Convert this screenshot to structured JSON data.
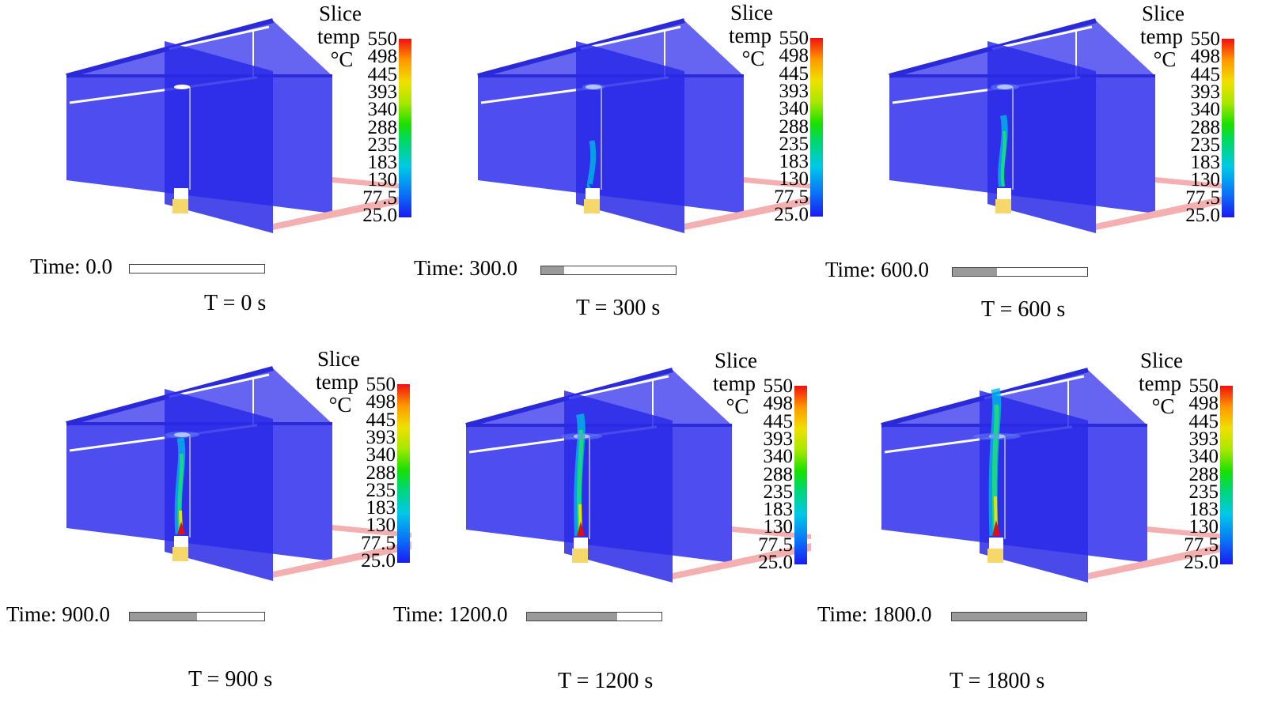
{
  "legend": {
    "title_line1": "Slice",
    "title_line2": "temp",
    "unit": "°C",
    "ticks": [
      "550",
      "498",
      "445",
      "393",
      "340",
      "288",
      "235",
      "183",
      "130",
      "77.5",
      "25.0"
    ],
    "colors": {
      "cold": "#1a1af0",
      "hot": "#f01010",
      "room_wall": "#3a3aee",
      "duct": "#f4b0b0"
    }
  },
  "panels": [
    {
      "time_label": "Time: 0.0",
      "progress": 0.0,
      "caption": "T = 0 s",
      "plume": 0
    },
    {
      "time_label": "Time: 300.0",
      "progress": 0.17,
      "caption": "T = 300 s",
      "plume": 1
    },
    {
      "time_label": "Time: 600.0",
      "progress": 0.33,
      "caption": "T = 600 s",
      "plume": 2
    },
    {
      "time_label": "Time: 900.0",
      "progress": 0.5,
      "caption": "T = 900 s",
      "plume": 3
    },
    {
      "time_label": "Time: 1200.0",
      "progress": 0.67,
      "caption": "T = 1200 s",
      "plume": 4
    },
    {
      "time_label": "Time: 1800.0",
      "progress": 1.0,
      "caption": "T = 1800 s",
      "plume": 5
    }
  ]
}
